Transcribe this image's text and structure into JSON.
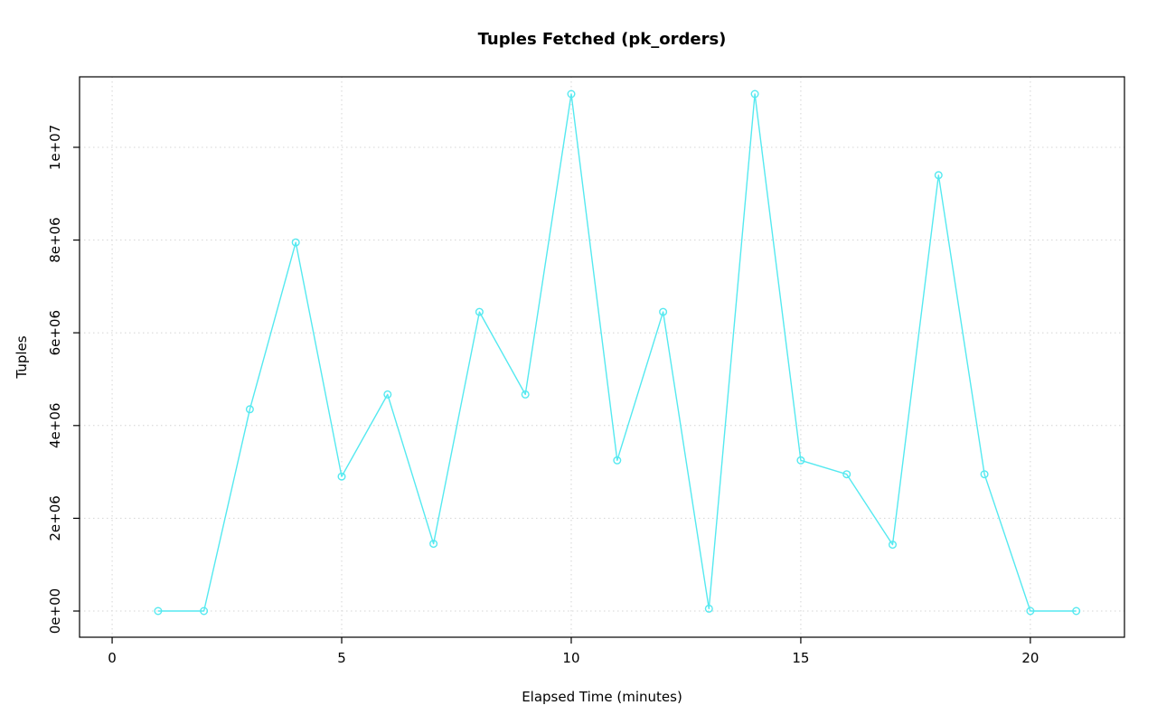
{
  "chart_data": {
    "type": "line",
    "title": "Tuples Fetched (pk_orders)",
    "xlabel": "Elapsed Time (minutes)",
    "ylabel": "Tuples",
    "x": [
      1,
      2,
      3,
      4,
      5,
      6,
      7,
      8,
      9,
      10,
      11,
      12,
      13,
      14,
      15,
      16,
      17,
      18,
      19,
      20,
      21
    ],
    "y": [
      0,
      0,
      4350000,
      7950000,
      2900000,
      4670000,
      1450000,
      6450000,
      4670000,
      11150000,
      3250000,
      6450000,
      50000,
      11150000,
      3250000,
      2950000,
      1430000,
      9400000,
      2950000,
      0,
      0
    ],
    "x_ticks": [
      0,
      5,
      10,
      15,
      20
    ],
    "x_tick_labels": [
      "0",
      "5",
      "10",
      "15",
      "20"
    ],
    "y_ticks": [
      0,
      2000000,
      4000000,
      6000000,
      8000000,
      10000000
    ],
    "y_tick_labels": [
      "0e+00",
      "2e+06",
      "4e+06",
      "6e+06",
      "8e+06",
      "1e+07"
    ],
    "xlim": [
      -0.71,
      22.05
    ],
    "ylim": [
      -565000,
      11520000
    ],
    "grid": true,
    "legend_position": "none",
    "marker": "open-circle",
    "line_color": "#55E9F0",
    "grid_color": "#D4D4D4",
    "axis_color": "#000000"
  }
}
